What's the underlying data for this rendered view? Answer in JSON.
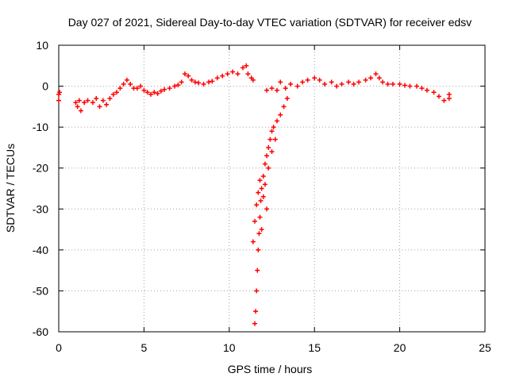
{
  "chart_data": {
    "type": "scatter",
    "title": "Day 027 of 2021, Sidereal Day-to-day VTEC variation (SDTVAR) for receiver edsv",
    "xlabel": "GPS time / hours",
    "ylabel": "SDTVAR / TECUs",
    "xlim": [
      0,
      25
    ],
    "ylim": [
      -60,
      10
    ],
    "xticks": [
      0,
      5,
      10,
      15,
      20,
      25
    ],
    "yticks": [
      -60,
      -50,
      -40,
      -30,
      -20,
      -10,
      0,
      10
    ],
    "grid": true,
    "marker": "plus",
    "series": [
      {
        "name": "SDTVAR",
        "color": "#ff0000",
        "points": [
          [
            0.0,
            -2
          ],
          [
            0.0,
            -3.5
          ],
          [
            0.05,
            -1.5
          ],
          [
            1.0,
            -4
          ],
          [
            1.1,
            -5
          ],
          [
            1.2,
            -3.5
          ],
          [
            1.3,
            -6
          ],
          [
            1.5,
            -4
          ],
          [
            1.7,
            -3.5
          ],
          [
            2.0,
            -4
          ],
          [
            2.2,
            -3
          ],
          [
            2.4,
            -5
          ],
          [
            2.6,
            -3.5
          ],
          [
            2.8,
            -4.5
          ],
          [
            3.0,
            -3
          ],
          [
            3.2,
            -2
          ],
          [
            3.4,
            -1.5
          ],
          [
            3.6,
            -0.5
          ],
          [
            3.8,
            0.5
          ],
          [
            4.0,
            1.5
          ],
          [
            4.2,
            0.5
          ],
          [
            4.4,
            -0.5
          ],
          [
            4.6,
            -0.5
          ],
          [
            4.8,
            0
          ],
          [
            5.0,
            -1
          ],
          [
            5.2,
            -1.5
          ],
          [
            5.4,
            -2
          ],
          [
            5.6,
            -1.5
          ],
          [
            5.8,
            -1.8
          ],
          [
            6.0,
            -1.2
          ],
          [
            6.2,
            -0.8
          ],
          [
            6.5,
            -0.5
          ],
          [
            6.8,
            0
          ],
          [
            7.0,
            0.3
          ],
          [
            7.2,
            1
          ],
          [
            7.4,
            3
          ],
          [
            7.6,
            2.5
          ],
          [
            7.8,
            1.5
          ],
          [
            8.0,
            1
          ],
          [
            8.2,
            0.8
          ],
          [
            8.5,
            0.5
          ],
          [
            8.8,
            1
          ],
          [
            9.0,
            1.2
          ],
          [
            9.3,
            2
          ],
          [
            9.6,
            2.5
          ],
          [
            9.9,
            3
          ],
          [
            10.2,
            3.5
          ],
          [
            10.5,
            3
          ],
          [
            10.8,
            4.5
          ],
          [
            11.0,
            5
          ],
          [
            11.1,
            3
          ],
          [
            11.3,
            2
          ],
          [
            11.4,
            1.5
          ],
          [
            11.5,
            -58
          ],
          [
            11.55,
            -55
          ],
          [
            11.6,
            -50
          ],
          [
            11.65,
            -45
          ],
          [
            11.7,
            -40
          ],
          [
            11.75,
            -36
          ],
          [
            11.8,
            -32
          ],
          [
            11.85,
            -28
          ],
          [
            11.9,
            -25
          ],
          [
            12.0,
            -22
          ],
          [
            12.1,
            -19
          ],
          [
            12.2,
            -17
          ],
          [
            12.3,
            -15
          ],
          [
            12.4,
            -13
          ],
          [
            12.5,
            -11
          ],
          [
            12.6,
            -10
          ],
          [
            12.8,
            -8.5
          ],
          [
            13.0,
            -7
          ],
          [
            13.2,
            -5
          ],
          [
            13.4,
            -3
          ],
          [
            11.4,
            -38
          ],
          [
            11.5,
            -33
          ],
          [
            11.6,
            -29
          ],
          [
            11.7,
            -26
          ],
          [
            11.8,
            -23
          ],
          [
            12.0,
            -27
          ],
          [
            12.1,
            -24
          ],
          [
            12.3,
            -20
          ],
          [
            12.5,
            -16
          ],
          [
            12.7,
            -13
          ],
          [
            12.2,
            -30
          ],
          [
            11.9,
            -35
          ],
          [
            12.2,
            -1
          ],
          [
            12.5,
            -0.5
          ],
          [
            12.8,
            -1
          ],
          [
            13.0,
            1
          ],
          [
            13.3,
            -0.5
          ],
          [
            13.6,
            0.5
          ],
          [
            14.0,
            0
          ],
          [
            14.3,
            1
          ],
          [
            14.6,
            1.5
          ],
          [
            15.0,
            2
          ],
          [
            15.3,
            1.5
          ],
          [
            15.6,
            0.5
          ],
          [
            16.0,
            1
          ],
          [
            16.3,
            0
          ],
          [
            16.6,
            0.5
          ],
          [
            17.0,
            1
          ],
          [
            17.3,
            0.5
          ],
          [
            17.6,
            1
          ],
          [
            18.0,
            1.5
          ],
          [
            18.3,
            2
          ],
          [
            18.6,
            3
          ],
          [
            18.8,
            2
          ],
          [
            19.0,
            1
          ],
          [
            19.3,
            0.5
          ],
          [
            19.6,
            0.5
          ],
          [
            20.0,
            0.5
          ],
          [
            20.3,
            0.2
          ],
          [
            20.6,
            0
          ],
          [
            21.0,
            0
          ],
          [
            21.3,
            -0.5
          ],
          [
            21.6,
            -1
          ],
          [
            22.0,
            -1.5
          ],
          [
            22.3,
            -2.5
          ],
          [
            22.6,
            -3.5
          ],
          [
            22.9,
            -3
          ],
          [
            22.9,
            -2
          ]
        ]
      }
    ]
  }
}
